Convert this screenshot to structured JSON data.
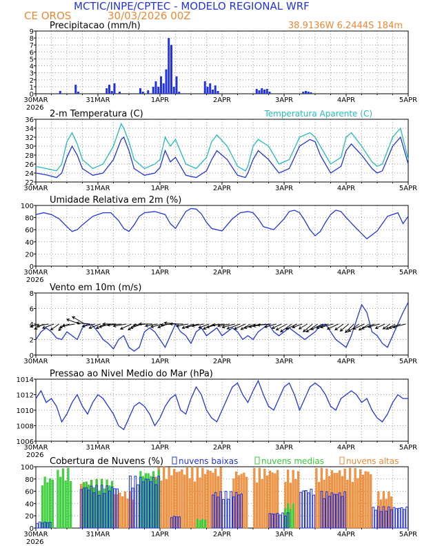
{
  "header": {
    "title": "MCTIC/INPE/CPTEC - MODELO REGIONAL WRF",
    "location": "CE OROS",
    "run": "30/03/2026 00Z",
    "coords": "38.9136W 6.2444S 184m"
  },
  "colors": {
    "blue": "#2233dd",
    "orange": "#ee8833",
    "cyan": "#22bbbb",
    "green": "#33cc33",
    "black": "#000000"
  },
  "x_axis": {
    "ticks": [
      "30MAR",
      "31MAR",
      "1APR",
      "2APR",
      "3APR",
      "4APR",
      "5APR"
    ],
    "year": "2026",
    "hours_total": 144
  },
  "chart_data": [
    {
      "id": "precip",
      "type": "bar",
      "title": "Precipitacao (mm/h)",
      "ylim": [
        0,
        9
      ],
      "yticks": [
        0,
        1,
        2,
        3,
        4,
        5,
        6,
        7,
        8,
        9
      ],
      "series": [
        {
          "x": [
            9,
            15,
            16,
            27,
            28,
            29,
            30,
            32,
            40,
            41,
            43,
            45,
            46,
            47,
            48,
            49,
            50,
            51,
            52,
            53,
            54,
            55,
            65,
            66,
            67,
            68,
            69,
            70,
            85,
            86,
            87,
            88,
            89,
            90,
            103,
            104,
            105,
            106
          ],
          "values": [
            0.4,
            1.3,
            0.3,
            0.8,
            1.3,
            0.4,
            1.5,
            0.3,
            0.8,
            0.3,
            0.5,
            1.0,
            1.8,
            1.0,
            2.5,
            1.5,
            3.5,
            8.0,
            7.0,
            1.0,
            2.5,
            0.3,
            1.8,
            1.0,
            1.5,
            0.6,
            1.2,
            0.4,
            0.7,
            0.5,
            0.8,
            0.6,
            0.7,
            0.3,
            0.3,
            0.4,
            0.3,
            0.2
          ]
        }
      ]
    },
    {
      "id": "temp",
      "type": "line",
      "title": "2-m Temperatura (C)",
      "legend": "Temperatura Aparente (C)",
      "ylim": [
        22,
        36
      ],
      "yticks": [
        22,
        24,
        26,
        28,
        30,
        32,
        34,
        36
      ],
      "series": [
        {
          "x": [
            0,
            4,
            8,
            10,
            12,
            14,
            16,
            18,
            22,
            26,
            30,
            33,
            34,
            36,
            38,
            42,
            46,
            48,
            50,
            52,
            54,
            58,
            62,
            66,
            68,
            70,
            74,
            78,
            81,
            82,
            84,
            86,
            90,
            94,
            98,
            102,
            106,
            108,
            110,
            114,
            118,
            120,
            122,
            126,
            130,
            132,
            134,
            138,
            141,
            144
          ],
          "values": [
            24,
            23.6,
            23,
            24,
            27.5,
            30,
            28,
            25,
            23.5,
            24,
            27,
            31.5,
            32,
            29,
            25,
            23.5,
            24,
            25.2,
            29,
            26.5,
            27.5,
            23.5,
            23,
            24.5,
            27,
            29,
            27,
            23.5,
            23,
            24,
            27,
            29,
            27,
            24,
            25,
            30,
            31.5,
            31,
            28,
            24,
            25.5,
            29,
            30.5,
            28,
            25,
            24,
            24.5,
            30,
            32,
            26
          ]
        },
        {
          "x": [
            0,
            4,
            8,
            10,
            12,
            14,
            16,
            18,
            22,
            26,
            30,
            33,
            34,
            36,
            38,
            42,
            46,
            48,
            50,
            52,
            54,
            58,
            62,
            66,
            68,
            70,
            74,
            78,
            81,
            82,
            84,
            86,
            90,
            94,
            98,
            102,
            106,
            108,
            110,
            114,
            118,
            120,
            122,
            126,
            130,
            132,
            134,
            138,
            141,
            144
          ],
          "values": [
            25.5,
            25,
            24.5,
            26,
            31,
            33,
            30.5,
            27,
            25,
            26,
            30,
            35,
            34,
            31,
            27,
            25,
            26,
            27,
            32,
            30,
            31.5,
            26,
            25,
            27.5,
            31,
            32.5,
            30,
            25.5,
            24.5,
            25.5,
            30,
            31.5,
            30,
            26,
            27,
            32,
            33,
            32,
            30,
            26,
            27.5,
            32,
            33,
            30,
            26.5,
            25.5,
            26,
            32,
            34,
            27
          ]
        }
      ]
    },
    {
      "id": "rh",
      "type": "line",
      "title": "Umidade Relativa em 2m (%)",
      "ylim": [
        0,
        100
      ],
      "yticks": [
        0,
        20,
        40,
        60,
        80,
        100
      ],
      "series": [
        {
          "x": [
            0,
            3,
            6,
            9,
            12,
            14,
            16,
            18,
            20,
            22,
            26,
            29,
            32,
            34,
            36,
            38,
            40,
            42,
            46,
            50,
            52,
            54,
            58,
            60,
            62,
            64,
            66,
            68,
            72,
            76,
            79,
            82,
            84,
            86,
            88,
            92,
            96,
            98,
            100,
            102,
            104,
            106,
            108,
            110,
            112,
            114,
            116,
            118,
            120,
            124,
            128,
            132,
            136,
            140,
            142,
            144
          ],
          "values": [
            85,
            88,
            85,
            78,
            65,
            57,
            60,
            68,
            75,
            82,
            88,
            88,
            75,
            62,
            57,
            68,
            82,
            88,
            90,
            85,
            70,
            62,
            90,
            95,
            94,
            86,
            72,
            62,
            58,
            78,
            88,
            90,
            88,
            78,
            65,
            60,
            78,
            90,
            92,
            88,
            75,
            60,
            50,
            57,
            72,
            85,
            92,
            90,
            80,
            62,
            45,
            58,
            82,
            88,
            70,
            82
          ]
        }
      ]
    },
    {
      "id": "wind",
      "type": "line",
      "title": "Vento em 10m (m/s)",
      "ylim": [
        0,
        8
      ],
      "yticks": [
        0,
        2,
        4,
        6,
        8
      ],
      "series": [
        {
          "x": [
            0,
            2,
            4,
            6,
            8,
            10,
            12,
            14,
            16,
            18,
            20,
            22,
            24,
            26,
            28,
            30,
            32,
            34,
            36,
            38,
            40,
            42,
            44,
            46,
            48,
            50,
            52,
            54,
            56,
            58,
            60,
            62,
            64,
            66,
            68,
            70,
            72,
            74,
            76,
            78,
            80,
            82,
            84,
            86,
            88,
            90,
            92,
            94,
            96,
            98,
            100,
            102,
            104,
            106,
            108,
            110,
            112,
            114,
            116,
            118,
            120,
            122,
            124,
            126,
            128,
            130,
            132,
            134,
            136,
            138,
            140,
            142,
            144
          ],
          "values": [
            2,
            3,
            3.5,
            3,
            2.2,
            2,
            3,
            2.5,
            2,
            3.5,
            4,
            3.8,
            3,
            2,
            1.5,
            0.8,
            2,
            2.5,
            1,
            0.5,
            1,
            3,
            3.5,
            3,
            2,
            1,
            2.5,
            4,
            3,
            2.5,
            1.5,
            3,
            3.5,
            2.5,
            3,
            3.5,
            2.5,
            3,
            3.5,
            3,
            2,
            2.5,
            2,
            3,
            3.5,
            4,
            3,
            2.5,
            3,
            3.5,
            3,
            2.5,
            2,
            2.5,
            3,
            3.8,
            4,
            3,
            2,
            1.5,
            1,
            2.5,
            4.5,
            6.5,
            5.5,
            3,
            2.5,
            1.5,
            1,
            2.5,
            4,
            5.5,
            6.8
          ]
        },
        {
          "x": [
            1,
            3,
            5,
            7,
            9,
            11,
            13,
            15,
            17,
            19,
            21,
            23,
            25,
            27,
            29,
            31,
            33,
            35,
            37,
            39,
            41,
            43,
            45,
            47,
            49,
            51,
            53,
            55,
            57,
            59,
            61,
            63,
            65,
            67,
            69,
            71,
            73,
            75,
            77,
            79,
            81,
            83,
            85,
            87,
            89,
            91,
            93,
            95,
            97,
            99,
            101,
            103,
            105,
            107,
            109,
            111,
            113,
            115,
            117,
            119,
            121,
            123,
            125,
            127,
            129,
            131,
            133,
            135,
            137,
            139,
            141,
            143
          ],
          "values": [
            2.5,
            3,
            3.5,
            3.5,
            3,
            2.5,
            3,
            3.5,
            4,
            4.2,
            4,
            3.8,
            3.5,
            3,
            3.5,
            3.8,
            4,
            3.8,
            3.5,
            3,
            3.5,
            4,
            3.8,
            3.5,
            3.5,
            3,
            3.5,
            4,
            3.8,
            3.5,
            3.5,
            3.8,
            3.5,
            3.2,
            3.5,
            3.8,
            3.5,
            3.5,
            3.8,
            4,
            3.5,
            3.2,
            3.5,
            3.5,
            3.8,
            4,
            3.5,
            3,
            3.5,
            4,
            3.5,
            3,
            2.8,
            3.5,
            4,
            3.8,
            3.5,
            3.8,
            3.5,
            3,
            3.2,
            3.5,
            3.8,
            3.5,
            3.5,
            4,
            3.5,
            3,
            2.5,
            3,
            3.5,
            3.8
          ],
          "angles": [
            200,
            210,
            190,
            200,
            215,
            230,
            200,
            190,
            160,
            150,
            175,
            190,
            200,
            205,
            195,
            180,
            185,
            190,
            205,
            215,
            200,
            185,
            180,
            190,
            195,
            200,
            185,
            175,
            180,
            190,
            200,
            195,
            190,
            200,
            205,
            195,
            185,
            190,
            195,
            200,
            205,
            210,
            200,
            195,
            190,
            185,
            195,
            205,
            210,
            215,
            205,
            200,
            210,
            220,
            215,
            205,
            200,
            195,
            205,
            215,
            220,
            225,
            215,
            205,
            210,
            200,
            195,
            205,
            215,
            210,
            200,
            195
          ]
        }
      ]
    },
    {
      "id": "pressure",
      "type": "line",
      "title": "Pressao ao Nivel Medio do Mar (hPa)",
      "ylim": [
        1006,
        1014
      ],
      "yticks": [
        1006,
        1008,
        1010,
        1012,
        1014
      ],
      "series": [
        {
          "x": [
            0,
            2,
            4,
            6,
            8,
            10,
            12,
            14,
            16,
            18,
            20,
            22,
            24,
            26,
            28,
            30,
            32,
            34,
            36,
            38,
            40,
            42,
            44,
            46,
            48,
            50,
            52,
            54,
            56,
            58,
            60,
            62,
            64,
            66,
            68,
            70,
            72,
            74,
            76,
            78,
            80,
            82,
            84,
            86,
            88,
            90,
            92,
            94,
            96,
            98,
            100,
            102,
            104,
            106,
            108,
            110,
            112,
            114,
            116,
            118,
            120,
            122,
            124,
            126,
            128,
            130,
            132,
            134,
            136,
            138,
            140,
            142,
            144
          ],
          "values": [
            1011.5,
            1012.5,
            1011,
            1011.5,
            1010.5,
            1008.5,
            1009.5,
            1011,
            1012,
            1010.5,
            1009.5,
            1011,
            1012,
            1011.5,
            1010.5,
            1009.5,
            1008,
            1007.5,
            1009,
            1010.5,
            1011,
            1010.5,
            1009.5,
            1008,
            1009,
            1010.5,
            1011.5,
            1012,
            1010,
            1009.5,
            1011.5,
            1013,
            1012,
            1010,
            1009,
            1008.5,
            1010,
            1011.5,
            1013,
            1013.5,
            1012,
            1011,
            1012.5,
            1013.8,
            1012,
            1010.5,
            1010,
            1011.5,
            1013,
            1013.5,
            1012,
            1010,
            1011.5,
            1013,
            1013.5,
            1013,
            1012,
            1010.5,
            1010,
            1011.5,
            1012,
            1012.5,
            1012,
            1011,
            1011.5,
            1010,
            1009,
            1008.5,
            1009.5,
            1011,
            1012,
            1011.5,
            1011.5
          ]
        }
      ]
    },
    {
      "id": "clouds",
      "type": "bar",
      "title": "Cobertura de Nuvens (%)",
      "legend": [
        "nuvens baixas",
        "nuvens medias",
        "nuvens altas"
      ],
      "ylim": [
        0,
        100
      ],
      "yticks": [
        0,
        20,
        40,
        60,
        80,
        100
      ],
      "series": [
        {
          "x_start": [
            0,
            17,
            36,
            52,
            68,
            90,
            102,
            110,
            130
          ],
          "x_end": [
            6,
            32,
            48,
            56,
            80,
            98,
            108,
            120,
            144
          ],
          "values": [
            10,
            70,
            85,
            20,
            60,
            25,
            65,
            60,
            35
          ]
        },
        {
          "x_start": [
            2,
            8,
            18,
            40,
            62,
            96
          ],
          "x_end": [
            7,
            14,
            30,
            48,
            66,
            100
          ],
          "values": [
            85,
            98,
            80,
            95,
            15,
            40
          ]
        },
        {
          "x_start": [
            17,
            30,
            46,
            76,
            84,
            96,
            108,
            132
          ],
          "x_end": [
            26,
            38,
            72,
            82,
            94,
            102,
            130,
            138
          ],
          "values": [
            80,
            60,
            100,
            95,
            98,
            95,
            98,
            60
          ]
        }
      ]
    }
  ]
}
